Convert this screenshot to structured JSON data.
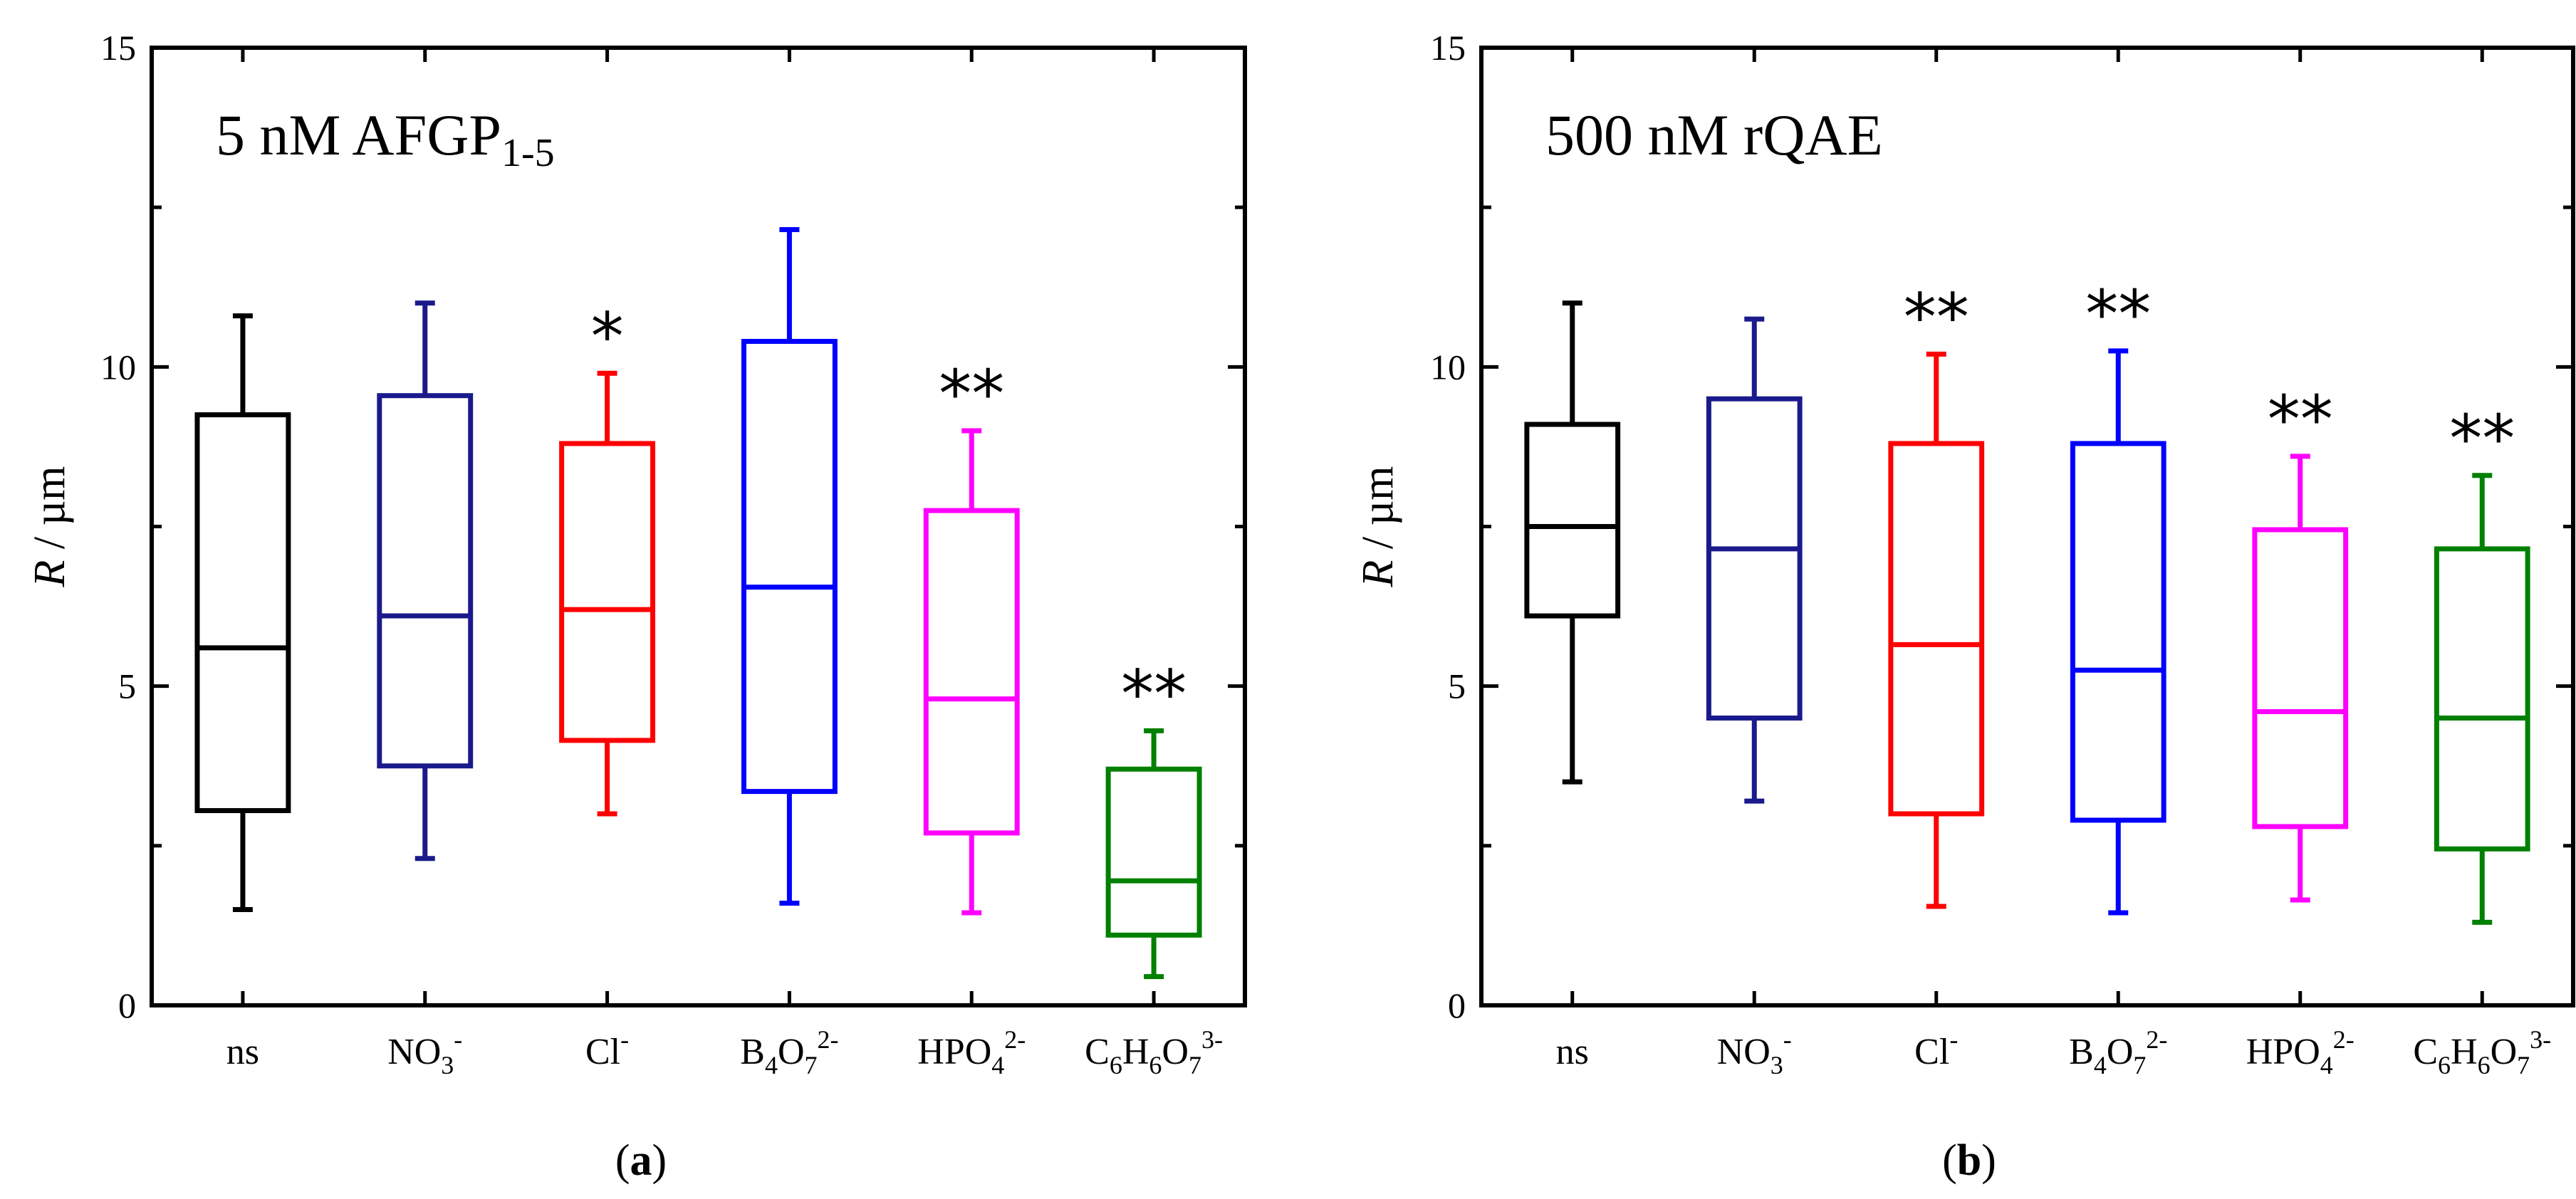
{
  "figure": {
    "captions": [
      "(a)",
      "(b)"
    ]
  },
  "chart_data": [
    {
      "type": "box",
      "panel": "a",
      "title": "5 nM AFGP1-5",
      "title_parts": {
        "main": "5 nM AFGP",
        "sub": "1-5"
      },
      "xlabel": "",
      "ylabel": "R / µm",
      "ylim": [
        0,
        15
      ],
      "yticks": [
        0,
        5,
        10,
        15
      ],
      "categories": [
        {
          "parts": [
            {
              "t": "ns"
            }
          ]
        },
        {
          "parts": [
            {
              "t": "NO"
            },
            {
              "t": "3",
              "sub": true
            },
            {
              "t": "-",
              "sup": true
            }
          ]
        },
        {
          "parts": [
            {
              "t": "Cl"
            },
            {
              "t": "-",
              "sup": true
            }
          ]
        },
        {
          "parts": [
            {
              "t": "B"
            },
            {
              "t": "4",
              "sub": true
            },
            {
              "t": "O"
            },
            {
              "t": "7",
              "sub": true
            },
            {
              "t": "2-",
              "sup": true
            }
          ]
        },
        {
          "parts": [
            {
              "t": "HPO"
            },
            {
              "t": "4",
              "sub": true
            },
            {
              "t": "2-",
              "sup": true
            }
          ]
        },
        {
          "parts": [
            {
              "t": "C"
            },
            {
              "t": "6",
              "sub": true
            },
            {
              "t": "H"
            },
            {
              "t": "6",
              "sub": true
            },
            {
              "t": "O"
            },
            {
              "t": "7",
              "sub": true
            },
            {
              "t": "3-",
              "sup": true
            }
          ]
        }
      ],
      "category_labels": [
        "ns",
        "NO3-",
        "Cl-",
        "B4O72-",
        "HPO42-",
        "C6H6O73-"
      ],
      "boxes": [
        {
          "whisker_low": 1.5,
          "q1": 3.05,
          "median": 5.6,
          "q3": 9.25,
          "whisker_high": 10.8,
          "color": "#000000",
          "significance": ""
        },
        {
          "whisker_low": 2.3,
          "q1": 3.75,
          "median": 6.1,
          "q3": 9.55,
          "whisker_high": 11.0,
          "color": "#1a1a8c",
          "significance": ""
        },
        {
          "whisker_low": 3.0,
          "q1": 4.15,
          "median": 6.2,
          "q3": 8.8,
          "whisker_high": 9.9,
          "color": "#ff0000",
          "significance": "*"
        },
        {
          "whisker_low": 1.6,
          "q1": 3.35,
          "median": 6.55,
          "q3": 10.4,
          "whisker_high": 12.15,
          "color": "#0000ff",
          "significance": ""
        },
        {
          "whisker_low": 1.45,
          "q1": 2.7,
          "median": 4.8,
          "q3": 7.75,
          "whisker_high": 9.0,
          "color": "#ff00ff",
          "significance": "**"
        },
        {
          "whisker_low": 0.45,
          "q1": 1.1,
          "median": 1.95,
          "q3": 3.7,
          "whisker_high": 4.3,
          "color": "#008000",
          "significance": "**"
        }
      ]
    },
    {
      "type": "box",
      "panel": "b",
      "title": "500 nM rQAE",
      "title_parts": {
        "main": "500 nM rQAE",
        "sub": ""
      },
      "xlabel": "",
      "ylabel": "R / µm",
      "ylim": [
        0,
        15
      ],
      "yticks": [
        0,
        5,
        10,
        15
      ],
      "categories": [
        {
          "parts": [
            {
              "t": "ns"
            }
          ]
        },
        {
          "parts": [
            {
              "t": "NO"
            },
            {
              "t": "3",
              "sub": true
            },
            {
              "t": "-",
              "sup": true
            }
          ]
        },
        {
          "parts": [
            {
              "t": "Cl"
            },
            {
              "t": "-",
              "sup": true
            }
          ]
        },
        {
          "parts": [
            {
              "t": "B"
            },
            {
              "t": "4",
              "sub": true
            },
            {
              "t": "O"
            },
            {
              "t": "7",
              "sub": true
            },
            {
              "t": "2-",
              "sup": true
            }
          ]
        },
        {
          "parts": [
            {
              "t": "HPO"
            },
            {
              "t": "4",
              "sub": true
            },
            {
              "t": "2-",
              "sup": true
            }
          ]
        },
        {
          "parts": [
            {
              "t": "C"
            },
            {
              "t": "6",
              "sub": true
            },
            {
              "t": "H"
            },
            {
              "t": "6",
              "sub": true
            },
            {
              "t": "O"
            },
            {
              "t": "7",
              "sub": true
            },
            {
              "t": "3-",
              "sup": true
            }
          ]
        }
      ],
      "category_labels": [
        "ns",
        "NO3-",
        "Cl-",
        "B4O72-",
        "HPO42-",
        "C6H6O73-"
      ],
      "boxes": [
        {
          "whisker_low": 3.5,
          "q1": 6.1,
          "median": 7.5,
          "q3": 9.1,
          "whisker_high": 11.0,
          "color": "#000000",
          "significance": ""
        },
        {
          "whisker_low": 3.2,
          "q1": 4.5,
          "median": 7.15,
          "q3": 9.5,
          "whisker_high": 10.75,
          "color": "#1a1a8c",
          "significance": ""
        },
        {
          "whisker_low": 1.55,
          "q1": 3.0,
          "median": 5.65,
          "q3": 8.8,
          "whisker_high": 10.2,
          "color": "#ff0000",
          "significance": "**"
        },
        {
          "whisker_low": 1.45,
          "q1": 2.9,
          "median": 5.25,
          "q3": 8.8,
          "whisker_high": 10.25,
          "color": "#0000ff",
          "significance": "**"
        },
        {
          "whisker_low": 1.65,
          "q1": 2.8,
          "median": 4.6,
          "q3": 7.45,
          "whisker_high": 8.6,
          "color": "#ff00ff",
          "significance": "**"
        },
        {
          "whisker_low": 1.3,
          "q1": 2.45,
          "median": 4.5,
          "q3": 7.15,
          "whisker_high": 8.3,
          "color": "#008000",
          "significance": "**"
        }
      ]
    }
  ]
}
